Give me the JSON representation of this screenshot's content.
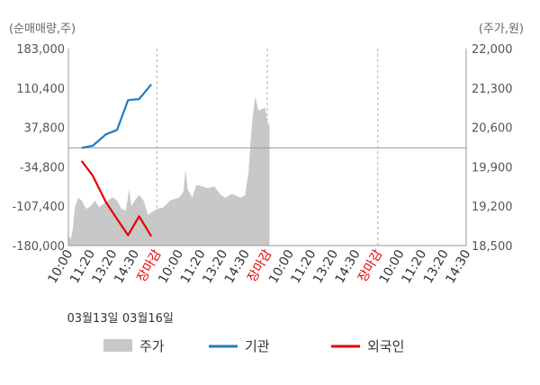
{
  "chart_data": {
    "type": "line",
    "left_axis_unit": "(순매매량,주)",
    "right_axis_unit": "(주가,원)",
    "left_axis": {
      "ticks": [
        "183,000",
        "110,400",
        "37,800",
        "-34,800",
        "-107,400",
        "-180,000"
      ],
      "range": [
        -180000,
        183000
      ]
    },
    "right_axis": {
      "ticks": [
        "22,000",
        "21,300",
        "20,600",
        "19,900",
        "19,200",
        "18,500"
      ],
      "range": [
        18500,
        22000
      ]
    },
    "x_ticks": [
      "10:00",
      "11:20",
      "13:20",
      "14:30",
      "장마감",
      "10:00",
      "11:20",
      "13:20",
      "14:30",
      "장마감",
      "10:00",
      "11:20",
      "13:20",
      "14:30",
      "장마감",
      "10:00",
      "11:20",
      "13:20",
      "14:30"
    ],
    "close_label": "장마감",
    "dates": [
      "03월13일",
      "03월16일"
    ],
    "legend": [
      {
        "name": "주가",
        "color": "#c8c8c8",
        "shape": "box"
      },
      {
        "name": "기관",
        "color": "#1c7cc6",
        "shape": "line"
      },
      {
        "name": "외국인",
        "color": "#e60000",
        "shape": "line"
      }
    ],
    "series": [
      {
        "name": "기관",
        "color": "#1c7cc6",
        "axis": "left",
        "points": [
          [
            0.6,
            0
          ],
          [
            1.1,
            4000
          ],
          [
            1.7,
            25000
          ],
          [
            2.2,
            33000
          ],
          [
            2.7,
            88000
          ],
          [
            3.2,
            90000
          ],
          [
            3.75,
            117000
          ]
        ]
      },
      {
        "name": "외국인",
        "color": "#e60000",
        "axis": "left",
        "points": [
          [
            0.6,
            -24000
          ],
          [
            1.1,
            -51000
          ],
          [
            1.7,
            -100000
          ],
          [
            2.2,
            -131000
          ],
          [
            2.7,
            -161000
          ],
          [
            3.2,
            -126000
          ],
          [
            3.75,
            -163000
          ]
        ]
      },
      {
        "name": "주가",
        "color": "#c8c8c8",
        "axis": "right",
        "points": [
          [
            0.0,
            18700
          ],
          [
            0.1,
            18600
          ],
          [
            0.2,
            18800
          ],
          [
            0.3,
            19200
          ],
          [
            0.45,
            19350
          ],
          [
            0.6,
            19300
          ],
          [
            0.8,
            19150
          ],
          [
            1.0,
            19200
          ],
          [
            1.2,
            19300
          ],
          [
            1.4,
            19180
          ],
          [
            1.6,
            19250
          ],
          [
            1.8,
            19300
          ],
          [
            2.0,
            19360
          ],
          [
            2.2,
            19300
          ],
          [
            2.4,
            19150
          ],
          [
            2.6,
            19120
          ],
          [
            2.75,
            19500
          ],
          [
            2.85,
            19200
          ],
          [
            3.0,
            19300
          ],
          [
            3.2,
            19400
          ],
          [
            3.4,
            19300
          ],
          [
            3.6,
            19050
          ],
          [
            3.8,
            19100
          ],
          [
            4.0,
            19150
          ],
          [
            4.3,
            19180
          ],
          [
            4.6,
            19300
          ],
          [
            5.0,
            19350
          ],
          [
            5.2,
            19450
          ],
          [
            5.3,
            19850
          ],
          [
            5.4,
            19500
          ],
          [
            5.6,
            19350
          ],
          [
            5.8,
            19580
          ],
          [
            6.0,
            19560
          ],
          [
            6.3,
            19520
          ],
          [
            6.6,
            19550
          ],
          [
            6.9,
            19400
          ],
          [
            7.1,
            19350
          ],
          [
            7.4,
            19420
          ],
          [
            7.8,
            19350
          ],
          [
            8.0,
            19400
          ],
          [
            8.15,
            19800
          ],
          [
            8.3,
            20650
          ],
          [
            8.45,
            21150
          ],
          [
            8.6,
            20900
          ],
          [
            8.9,
            20950
          ],
          [
            9.05,
            20650
          ],
          [
            9.1,
            20650
          ]
        ]
      }
    ],
    "grid": "vertical-dashed",
    "legend_position": "bottom"
  }
}
